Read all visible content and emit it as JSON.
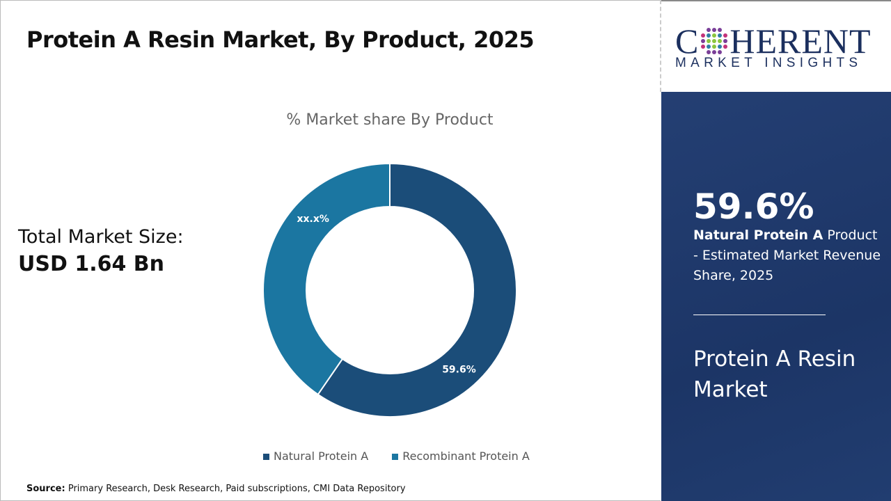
{
  "header": {
    "title": "Protein A Resin Market, By Product, 2025"
  },
  "total": {
    "label": "Total Market Size:",
    "value": "USD 1.64 Bn"
  },
  "source": {
    "label": "Source:",
    "text": "Primary Research, Desk Research, Paid subscriptions, CMI Data Repository"
  },
  "logo": {
    "main_left": "C",
    "main_right": "HERENT",
    "sub": "MARKET INSIGHTS"
  },
  "panel": {
    "highlight": "59.6%",
    "desc_bold": "Natural Protein A",
    "desc_rest": " Product - Estimated Market Revenue Share, 2025",
    "market_name": "Protein A Resin Market"
  },
  "chart_data": {
    "type": "donut",
    "title": "% Market share By Product",
    "categories": [
      "Natural Protein A",
      "Recombinant Protein A"
    ],
    "values": [
      59.6,
      40.4
    ],
    "data_labels": [
      "59.6%",
      "xx.x%"
    ],
    "colors": [
      "#1b4d79",
      "#1b76a1"
    ],
    "legend_position": "bottom"
  }
}
